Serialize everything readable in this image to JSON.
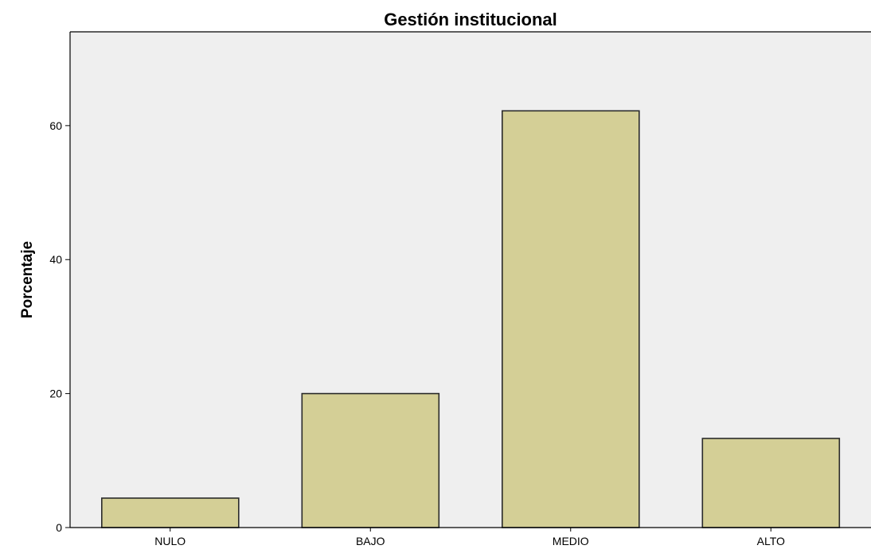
{
  "chart_data": {
    "type": "bar",
    "title": "Gestión institucional",
    "xlabel": "",
    "ylabel": "Porcentaje",
    "categories": [
      "NULO",
      "BAJO",
      "MEDIO",
      "ALTO"
    ],
    "values": [
      4.4,
      20.0,
      62.2,
      13.3
    ],
    "ylim": [
      0,
      74
    ],
    "yticks": [
      0,
      20,
      40,
      60
    ],
    "ytick_labels": [
      "0",
      "20",
      "40",
      "60"
    ],
    "grid": false,
    "legend": "none",
    "colors": {
      "bar_fill": "#D4CF96",
      "bar_stroke": "#2B2B2B",
      "plot_background": "#EFEFEF",
      "axis": "#000000"
    }
  }
}
